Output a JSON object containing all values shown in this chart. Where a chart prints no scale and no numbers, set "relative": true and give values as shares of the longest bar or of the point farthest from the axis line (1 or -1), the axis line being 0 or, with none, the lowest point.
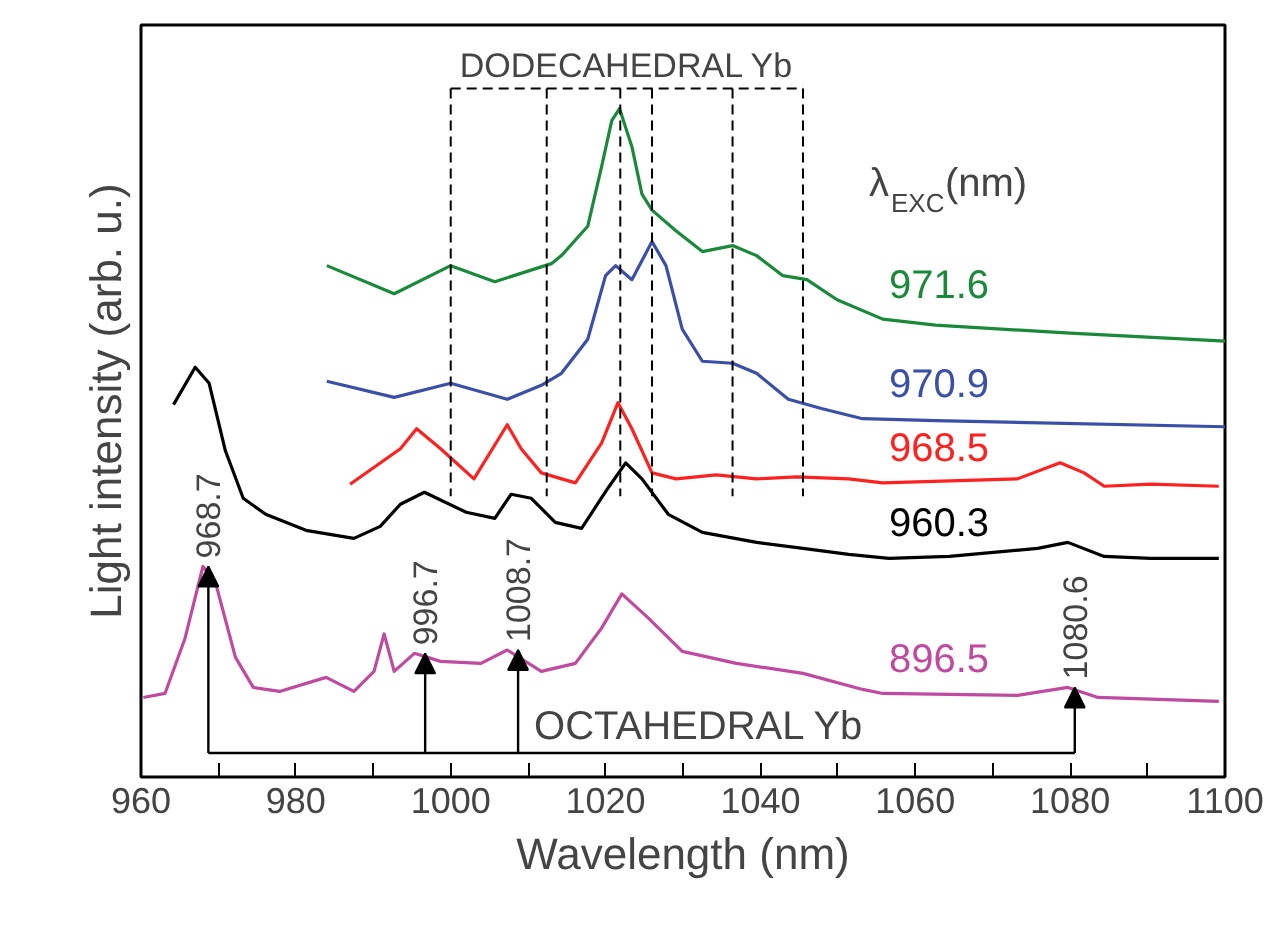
{
  "chart_data": {
    "type": "line",
    "relative": true,
    "xlabel": "Wavelength (nm)",
    "ylabel": "Light intensity (arb. u.)",
    "legend_title": "λ$_{EXC}$(nm)",
    "grid": false,
    "tick_labels": "x",
    "xlim": [
      960,
      1100
    ],
    "xticks": [
      960,
      {
        "value": 970,
        "label": null
      },
      980,
      {
        "value": 990,
        "label": null
      },
      1000,
      {
        "value": 1010,
        "label": null
      },
      1020,
      {
        "value": 1030,
        "label": null
      },
      1040,
      {
        "value": 1050,
        "label": null
      },
      1060,
      {
        "value": 1070,
        "label": null
      },
      1080,
      {
        "value": 1090,
        "label": null
      },
      1100
    ],
    "series": [
      {
        "name": "971.6",
        "color": "#1a8a3a",
        "x": [
          984,
          992.7,
          1000,
          1005.7,
          1013,
          1014.3,
          1017.7,
          1019.5,
          1020.8,
          1021.8,
          1023.4,
          1024.7,
          1026,
          1029,
          1032.5,
          1036.4,
          1039.5,
          1042.9,
          1046,
          1049.9,
          1055.8,
          1062.6,
          1080,
          1100
        ],
        "values": [
          0.765,
          0.723,
          0.765,
          0.741,
          0.768,
          0.78,
          0.824,
          0.914,
          0.982,
          1.0,
          0.943,
          0.872,
          0.848,
          0.818,
          0.786,
          0.795,
          0.78,
          0.75,
          0.744,
          0.714,
          0.685,
          0.676,
          0.664,
          0.652
        ]
      },
      {
        "name": "970.9",
        "color": "#3a4fa8",
        "x": [
          984,
          992.7,
          1000,
          1007.3,
          1011.7,
          1014.3,
          1017.7,
          1020,
          1021.3,
          1023.4,
          1026,
          1027.8,
          1029.9,
          1032.5,
          1036.4,
          1039.5,
          1043.6,
          1048,
          1053.2,
          1062.6,
          1100
        ],
        "values": [
          0.592,
          0.568,
          0.589,
          0.565,
          0.586,
          0.604,
          0.655,
          0.75,
          0.765,
          0.744,
          0.801,
          0.765,
          0.67,
          0.622,
          0.619,
          0.604,
          0.565,
          0.551,
          0.536,
          0.533,
          0.524
        ]
      },
      {
        "name": "968.5",
        "color": "#ff2020",
        "x": [
          987,
          993.5,
          995.6,
          998.7,
          1003,
          1007.3,
          1009.1,
          1011.7,
          1016.1,
          1019.5,
          1021.6,
          1023.4,
          1026,
          1029.1,
          1034.3,
          1039.5,
          1044.7,
          1051.4,
          1055.8,
          1073.2,
          1078.7,
          1081.8,
          1084.4,
          1090.4,
          1099.2
        ],
        "values": [
          0.438,
          0.491,
          0.521,
          0.491,
          0.446,
          0.527,
          0.491,
          0.455,
          0.44,
          0.5,
          0.56,
          0.521,
          0.455,
          0.446,
          0.452,
          0.446,
          0.449,
          0.446,
          0.44,
          0.446,
          0.47,
          0.455,
          0.435,
          0.438,
          0.435
        ]
      },
      {
        "name": "960.3",
        "color": "#000000",
        "x": [
          964.2,
          967,
          968.8,
          970.9,
          973.2,
          976.1,
          981.3,
          987.5,
          990.9,
          993.5,
          996.6,
          1002,
          1005.7,
          1007.8,
          1010.4,
          1013.5,
          1016.9,
          1020.3,
          1022.6,
          1024.7,
          1028.1,
          1032.5,
          1039.5,
          1045.5,
          1051.4,
          1056.6,
          1064.4,
          1075.8,
          1079.7,
          1084.4,
          1090.4,
          1099.2
        ],
        "values": [
          0.557,
          0.613,
          0.589,
          0.488,
          0.417,
          0.393,
          0.369,
          0.357,
          0.375,
          0.408,
          0.426,
          0.396,
          0.387,
          0.423,
          0.417,
          0.381,
          0.372,
          0.432,
          0.47,
          0.446,
          0.393,
          0.366,
          0.351,
          0.342,
          0.333,
          0.327,
          0.33,
          0.342,
          0.351,
          0.33,
          0.327,
          0.327
        ]
      },
      {
        "name": "896.5",
        "color": "#c04a9f",
        "x": [
          960.3,
          963.1,
          965.7,
          968,
          969.6,
          972.2,
          974.5,
          977.9,
          983.9,
          987.5,
          990.1,
          991.4,
          992.7,
          995.3,
          998.7,
          1003.9,
          1007.3,
          1011.7,
          1016.1,
          1019.5,
          1022.1,
          1025.5,
          1029.9,
          1036.9,
          1045.5,
          1053.2,
          1055.8,
          1073.2,
          1079.7,
          1083.6,
          1099.2
        ],
        "values": [
          0.119,
          0.125,
          0.208,
          0.315,
          0.292,
          0.179,
          0.134,
          0.128,
          0.149,
          0.128,
          0.158,
          0.214,
          0.158,
          0.185,
          0.173,
          0.17,
          0.19,
          0.158,
          0.17,
          0.223,
          0.274,
          0.238,
          0.188,
          0.17,
          0.155,
          0.131,
          0.125,
          0.122,
          0.134,
          0.119,
          0.113
        ]
      }
    ],
    "ref_lines": [
      {
        "axis": "x",
        "value": 1000,
        "label": null,
        "color": "#000000",
        "line_style": "dashed"
      },
      {
        "axis": "x",
        "value": 1012.4,
        "label": null,
        "color": "#000000",
        "line_style": "dashed"
      },
      {
        "axis": "x",
        "value": 1021.9,
        "label": null,
        "color": "#000000",
        "line_style": "dashed"
      },
      {
        "axis": "x",
        "value": 1026,
        "label": null,
        "color": "#000000",
        "line_style": "dashed"
      },
      {
        "axis": "x",
        "value": 1036.4,
        "label": null,
        "color": "#000000",
        "line_style": "dashed"
      },
      {
        "axis": "x",
        "value": 1045.5,
        "label": null,
        "color": "#000000",
        "line_style": "dashed"
      }
    ],
    "annotations": [
      "DODECAHEDRAL Yb",
      "OCTAHEDRAL Yb",
      {
        "text": "968.7",
        "x": 968.7,
        "y": 0.315
      },
      {
        "text": "996.7",
        "x": 996.7,
        "y": 0.185
      },
      {
        "text": "1008.7",
        "x": 1008.7,
        "y": 0.19
      },
      {
        "text": "1080.6",
        "x": 1080.6,
        "y": 0.134
      }
    ]
  }
}
